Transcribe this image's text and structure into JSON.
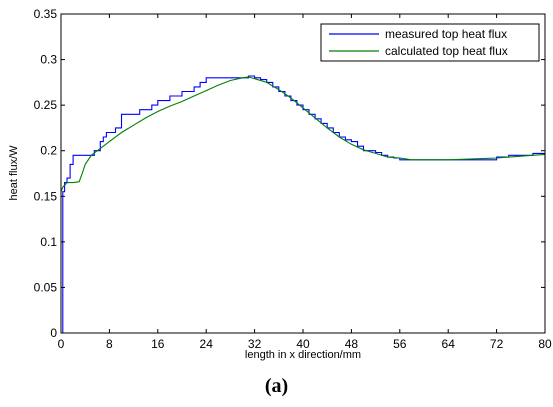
{
  "caption": "(a)",
  "chart_data": {
    "type": "line",
    "xlabel": "length in x direction/mm",
    "ylabel": "heat flux/W",
    "xlim": [
      0,
      80
    ],
    "ylim": [
      0,
      0.35
    ],
    "xticks": [
      0,
      8,
      16,
      24,
      32,
      40,
      48,
      56,
      64,
      72,
      80
    ],
    "yticks": [
      0,
      0.05,
      0.1,
      0.15,
      0.2,
      0.25,
      0.3,
      0.35
    ],
    "xtick_labels": [
      "0",
      "8",
      "16",
      "24",
      "32",
      "40",
      "48",
      "56",
      "64",
      "72",
      "80"
    ],
    "ytick_labels": [
      "0",
      "0.05",
      "0.1",
      "0.15",
      "0.2",
      "0.25",
      "0.3",
      "0.35"
    ],
    "grid": false,
    "legend_position": "top-right",
    "series": [
      {
        "name": "measured top heat flux",
        "color": "#0000ff",
        "style": "step",
        "x": [
          0,
          0.3,
          0.6,
          1,
          1.5,
          2,
          2.5,
          3,
          3.5,
          4,
          4.5,
          5,
          5.5,
          6,
          6.5,
          7,
          7.5,
          8,
          9,
          10,
          11,
          12,
          13,
          14,
          15,
          16,
          17,
          18,
          19,
          20,
          21,
          22,
          23,
          24,
          25,
          26,
          27,
          28,
          29,
          30,
          31,
          32,
          33,
          34,
          35,
          36,
          37,
          38,
          39,
          40,
          41,
          42,
          43,
          44,
          45,
          46,
          47,
          48,
          49,
          50,
          51,
          52,
          53,
          54,
          55,
          56,
          57,
          58,
          59,
          60,
          62,
          64,
          66,
          68,
          70,
          72,
          74,
          76,
          78,
          80
        ],
        "y": [
          0,
          0.155,
          0.165,
          0.17,
          0.185,
          0.195,
          0.195,
          0.195,
          0.195,
          0.195,
          0.195,
          0.195,
          0.2,
          0.2,
          0.21,
          0.215,
          0.22,
          0.22,
          0.225,
          0.24,
          0.24,
          0.24,
          0.245,
          0.245,
          0.25,
          0.255,
          0.255,
          0.26,
          0.26,
          0.265,
          0.265,
          0.27,
          0.275,
          0.28,
          0.28,
          0.28,
          0.28,
          0.28,
          0.28,
          0.28,
          0.282,
          0.28,
          0.278,
          0.275,
          0.27,
          0.265,
          0.26,
          0.255,
          0.25,
          0.245,
          0.24,
          0.235,
          0.23,
          0.225,
          0.22,
          0.215,
          0.212,
          0.21,
          0.205,
          0.2,
          0.2,
          0.198,
          0.195,
          0.193,
          0.192,
          0.19,
          0.19,
          0.19,
          0.19,
          0.19,
          0.19,
          0.19,
          0.19,
          0.19,
          0.19,
          0.193,
          0.195,
          0.195,
          0.197,
          0.19
        ]
      },
      {
        "name": "calculated top heat flux",
        "color": "#008000",
        "style": "line",
        "x": [
          0,
          0.3,
          1,
          2,
          3,
          3.5,
          4,
          5,
          6,
          7,
          8,
          10,
          12,
          14,
          16,
          18,
          20,
          22,
          24,
          26,
          28,
          30,
          31,
          32,
          34,
          36,
          38,
          40,
          42,
          44,
          46,
          48,
          50,
          52,
          54,
          56,
          58,
          60,
          64,
          68,
          72,
          76,
          80
        ],
        "y": [
          0.155,
          0.16,
          0.165,
          0.165,
          0.166,
          0.175,
          0.185,
          0.195,
          0.2,
          0.205,
          0.21,
          0.22,
          0.228,
          0.236,
          0.243,
          0.249,
          0.254,
          0.26,
          0.266,
          0.272,
          0.277,
          0.28,
          0.281,
          0.279,
          0.275,
          0.267,
          0.258,
          0.247,
          0.236,
          0.225,
          0.215,
          0.207,
          0.201,
          0.197,
          0.193,
          0.192,
          0.19,
          0.19,
          0.19,
          0.191,
          0.192,
          0.194,
          0.196
        ]
      }
    ]
  }
}
